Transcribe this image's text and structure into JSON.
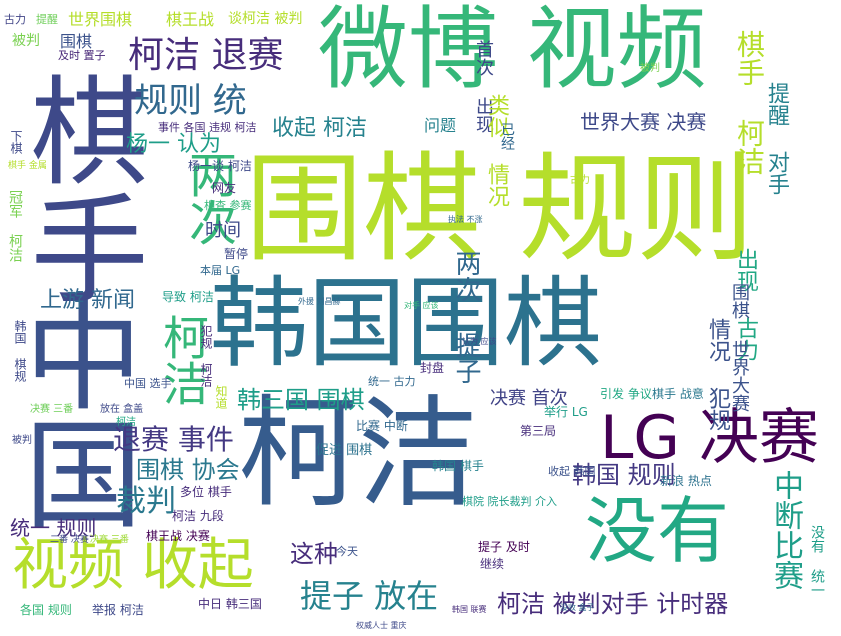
{
  "words": [
    {
      "text": "围棋 规则",
      "color": "#b5de2b"
    },
    {
      "text": "韩国围棋",
      "color": "#2c728e"
    },
    {
      "text": "柯洁",
      "color": "#365c8d"
    },
    {
      "text": "微博 视频",
      "color": "#35b779"
    },
    {
      "text": "中国",
      "color": "#3b528b"
    },
    {
      "text": "棋手",
      "color": "#3e4989"
    },
    {
      "text": "没有",
      "color": "#22a884"
    },
    {
      "text": "LG 决赛",
      "color": "#440154"
    },
    {
      "text": "视频 收起",
      "color": "#b5de2b"
    },
    {
      "text": "柯洁 退赛",
      "color": "#472d7b"
    },
    {
      "text": "两次",
      "color": "#35b779"
    },
    {
      "text": "规则 统",
      "color": "#31688e"
    },
    {
      "text": "提子 放在",
      "color": "#26828e"
    },
    {
      "text": "退赛 事件",
      "color": "#443983"
    },
    {
      "text": "韩三国 围棋",
      "color": "#1f9e89"
    },
    {
      "text": "围棋 协会",
      "color": "#2a788e"
    },
    {
      "text": "世界大赛 决赛",
      "color": "#3e4989"
    },
    {
      "text": "柯洁 被判对手 计时器",
      "color": "#472d7b"
    },
    {
      "text": "上游 新闻",
      "color": "#31688e"
    },
    {
      "text": "收起 柯洁",
      "color": "#26828e"
    },
    {
      "text": "韩国 规则",
      "color": "#443983"
    },
    {
      "text": "裁判",
      "color": "#2a788e"
    },
    {
      "text": "杨一 认为",
      "color": "#1f9e89"
    },
    {
      "text": "这种",
      "color": "#472d7b"
    },
    {
      "text": "棋手 柯洁",
      "color": "#b5de2b"
    },
    {
      "text": "中断比赛",
      "color": "#1f9e89"
    },
    {
      "text": "两次 提子",
      "color": "#31688e"
    },
    {
      "text": "柯洁",
      "color": "#35b779"
    },
    {
      "text": "时间",
      "color": "#3e4989"
    },
    {
      "text": "提醒 对手",
      "color": "#26828e"
    },
    {
      "text": "出现 古力",
      "color": "#22a884"
    },
    {
      "text": "情况 犯规",
      "color": "#3b528b"
    },
    {
      "text": "统一 规则",
      "color": "#472d7b"
    },
    {
      "text": "决赛 首次",
      "color": "#414487"
    },
    {
      "text": "首次 出现",
      "color": "#3e4989"
    },
    {
      "text": "类似 情况",
      "color": "#b5de2b"
    },
    {
      "text": "围棋 世界大赛",
      "color": "#3b528b"
    },
    {
      "text": "世界围棋",
      "color": "#b5de2b"
    },
    {
      "text": "棋王战",
      "color": "#b5de2b"
    },
    {
      "text": "谈柯洁 被判",
      "color": "#b5de2b"
    },
    {
      "text": "被判",
      "color": "#7ad151"
    },
    {
      "text": "围棋",
      "color": "#3b528b"
    },
    {
      "text": "问题",
      "color": "#26828e"
    },
    {
      "text": "已经",
      "color": "#31688e"
    },
    {
      "text": "古力",
      "color": "#414487"
    },
    {
      "text": "提醒",
      "color": "#6ece58"
    },
    {
      "text": "事件 各国 违规 柯洁",
      "color": "#472d7b"
    },
    {
      "text": "杨一谈 柯洁",
      "color": "#3e4989"
    },
    {
      "text": "网友",
      "color": "#472d7b"
    },
    {
      "text": "相查 参赛",
      "color": "#35b779"
    },
    {
      "text": "暂停",
      "color": "#3e4989"
    },
    {
      "text": "本届 LG",
      "color": "#31688e"
    },
    {
      "text": "导致 柯洁",
      "color": "#1f9e89"
    },
    {
      "text": "多位 棋手",
      "color": "#472d7b"
    },
    {
      "text": "柯洁 九段",
      "color": "#472d7b"
    },
    {
      "text": "棋王战 决赛",
      "color": "#440154"
    },
    {
      "text": "今天",
      "color": "#3b528b"
    },
    {
      "text": "促进 围棋",
      "color": "#2c728e"
    },
    {
      "text": "比赛 中断",
      "color": "#31688e"
    },
    {
      "text": "封盘",
      "color": "#472d7b"
    },
    {
      "text": "引发 争议",
      "color": "#22a884"
    },
    {
      "text": "棋手 战意",
      "color": "#2a788e"
    },
    {
      "text": "举行 LG",
      "color": "#1f9e89"
    },
    {
      "text": "第三局",
      "color": "#472d7b"
    },
    {
      "text": "韩国 棋手",
      "color": "#26828e"
    },
    {
      "text": "收起 韩国",
      "color": "#3b528b"
    },
    {
      "text": "新浪 热点",
      "color": "#2c728e"
    },
    {
      "text": "棋院 院长裁判 介入",
      "color": "#1f9e89"
    },
    {
      "text": "提子 及时",
      "color": "#440154"
    },
    {
      "text": "继续",
      "color": "#472d7b"
    },
    {
      "text": "中日 韩三国",
      "color": "#472d7b"
    },
    {
      "text": "举报 柯洁",
      "color": "#3e4989"
    },
    {
      "text": "各国 规则",
      "color": "#35b779"
    },
    {
      "text": "决赛 三番",
      "color": "#6ece58"
    },
    {
      "text": "放在 盒盖",
      "color": "#3e4989"
    },
    {
      "text": "统一 古力",
      "color": "#31688e"
    },
    {
      "text": "被判",
      "color": "#3e4989"
    },
    {
      "text": "柯洁",
      "color": "#22a884"
    },
    {
      "text": "没有 统一",
      "color": "#1f9e89"
    },
    {
      "text": "冠军 柯洁",
      "color": "#7ad151"
    },
    {
      "text": "下棋",
      "color": "#3e4989"
    },
    {
      "text": "及时 置子",
      "color": "#482878"
    },
    {
      "text": "棋手 金属",
      "color": "#b5de2b"
    },
    {
      "text": "韩国 棋规",
      "color": "#3e4989"
    },
    {
      "text": "决赛 三番",
      "color": "#a0da39"
    },
    {
      "text": "知道",
      "color": "#b5de2b"
    },
    {
      "text": "犯规 柯洁",
      "color": "#472d7b"
    },
    {
      "text": "中国 选手",
      "color": "#3b528b"
    },
    {
      "text": "对手 应该",
      "color": "#35b779"
    },
    {
      "text": "外援 刘昌赫",
      "color": "#31688e"
    },
    {
      "text": "权威人士 重庆",
      "color": "#3e4989"
    },
    {
      "text": "二番 决赛",
      "color": "#3e4989"
    },
    {
      "text": "执法 不涨",
      "color": "#31688e"
    },
    {
      "text": "古力",
      "color": "#b5de2b"
    },
    {
      "text": "被判",
      "color": "#7ad151"
    },
    {
      "text": "认为 应该",
      "color": "#3e4989"
    },
    {
      "text": "韩国 联赛",
      "color": "#472d7b"
    },
    {
      "text": "没收 盒子",
      "color": "#31688e"
    }
  ]
}
